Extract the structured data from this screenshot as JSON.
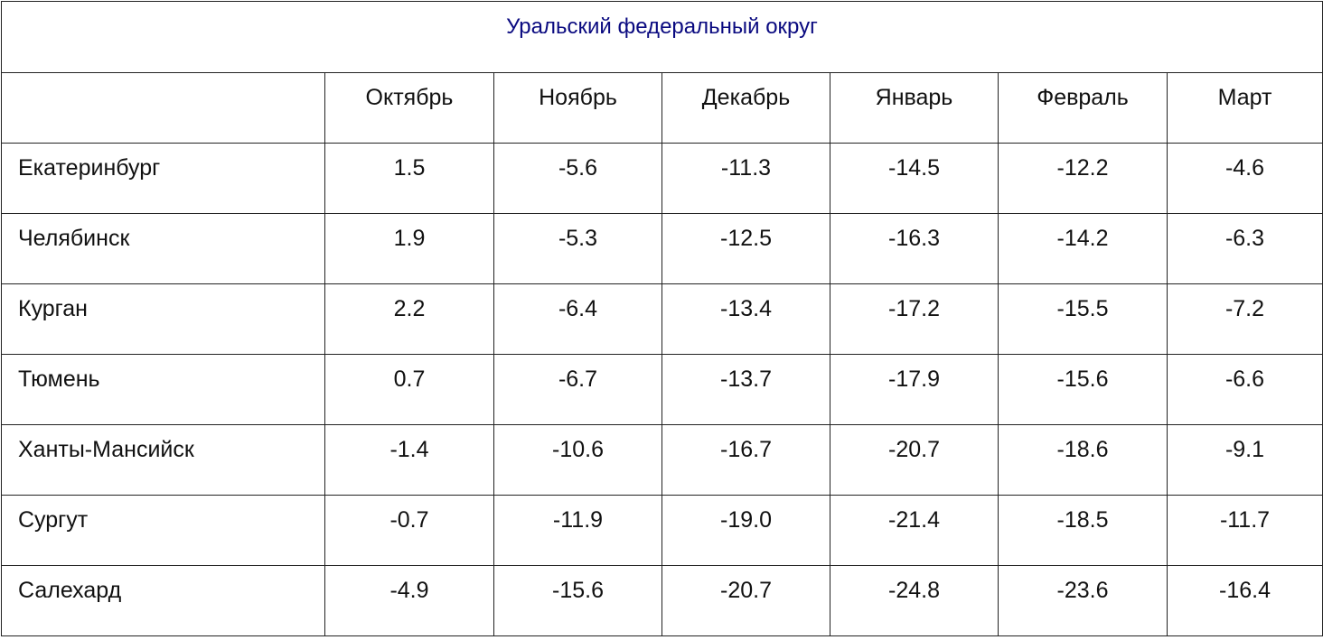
{
  "title": "Уральский федеральный округ",
  "header": [
    "Октябрь",
    "Ноябрь",
    "Декабрь",
    "Январь",
    "Февраль",
    "Март"
  ],
  "rows": [
    [
      "Екатеринбург",
      "1.5",
      "-5.6",
      "-11.3",
      "-14.5",
      "-12.2",
      "-4.6"
    ],
    [
      "Челябинск",
      "1.9",
      "-5.3",
      "-12.5",
      "-16.3",
      "-14.2",
      "-6.3"
    ],
    [
      "Курган",
      "2.2",
      "-6.4",
      "-13.4",
      "-17.2",
      "-15.5",
      "-7.2"
    ],
    [
      "Тюмень",
      "0.7",
      "-6.7",
      "-13.7",
      "-17.9",
      "-15.6",
      "-6.6"
    ],
    [
      "Ханты-Мансийск",
      "-1.4",
      "-10.6",
      "-16.7",
      "-20.7",
      "-18.6",
      "-9.1"
    ],
    [
      "Сургут",
      "-0.7",
      "-11.9",
      "-19.0",
      "-21.4",
      "-18.5",
      "-11.7"
    ],
    [
      "Салехард",
      "-4.9",
      "-15.6",
      "-20.7",
      "-24.8",
      "-23.6",
      "-16.4"
    ]
  ]
}
